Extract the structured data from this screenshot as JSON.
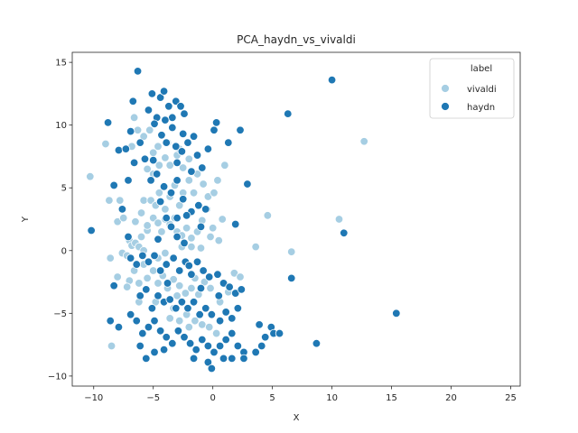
{
  "chart_data": {
    "type": "scatter",
    "title": "PCA_haydn_vs_vivaldi",
    "xlabel": "X",
    "ylabel": "Y",
    "xlim": [
      -11.8,
      25.8
    ],
    "ylim": [
      -10.8,
      15.8
    ],
    "xticks": [
      -10,
      -5,
      0,
      5,
      10,
      15,
      20,
      25
    ],
    "yticks": [
      -10,
      -5,
      0,
      5,
      10,
      15
    ],
    "grid": false,
    "legend": {
      "title": "label",
      "placement": "top-right",
      "entries": [
        "vivaldi",
        "haydn"
      ]
    },
    "series": [
      {
        "name": "vivaldi",
        "color": "#a6cee3",
        "points": [
          [
            -10.3,
            5.9
          ],
          [
            -9.0,
            8.5
          ],
          [
            -8.7,
            4.0
          ],
          [
            -8.5,
            -7.6
          ],
          [
            -7.8,
            4.0
          ],
          [
            -8.0,
            2.3
          ],
          [
            -7.5,
            2.6
          ],
          [
            -7.6,
            -0.2
          ],
          [
            -7.2,
            -0.4
          ],
          [
            -7.0,
            0.8
          ],
          [
            -6.8,
            0.4
          ],
          [
            -6.5,
            0.6
          ],
          [
            -6.2,
            0.3
          ],
          [
            -6.0,
            1.1
          ],
          [
            -5.8,
            0.0
          ],
          [
            -5.5,
            1.6
          ],
          [
            -6.5,
            2.3
          ],
          [
            -6.0,
            3.0
          ],
          [
            -5.5,
            2.0
          ],
          [
            -5.0,
            2.6
          ],
          [
            -4.6,
            2.2
          ],
          [
            -4.3,
            1.5
          ],
          [
            -4.0,
            2.5
          ],
          [
            -3.6,
            2.1
          ],
          [
            -3.2,
            2.6
          ],
          [
            -3.0,
            1.5
          ],
          [
            -2.6,
            1.2
          ],
          [
            -2.2,
            1.8
          ],
          [
            -1.8,
            1.0
          ],
          [
            -1.3,
            1.5
          ],
          [
            -0.9,
            2.4
          ],
          [
            -0.5,
            3.3
          ],
          [
            -0.2,
            1.1
          ],
          [
            0.5,
            0.8
          ],
          [
            0.8,
            2.5
          ],
          [
            -1.0,
            0.2
          ],
          [
            -1.8,
            0.3
          ],
          [
            -2.6,
            0.3
          ],
          [
            -5.8,
            4.0
          ],
          [
            -5.2,
            4.0
          ],
          [
            -4.8,
            3.6
          ],
          [
            -4.5,
            4.6
          ],
          [
            -4.0,
            3.3
          ],
          [
            -3.6,
            4.3
          ],
          [
            -3.2,
            5.2
          ],
          [
            -2.8,
            3.6
          ],
          [
            -2.5,
            4.6
          ],
          [
            -2.0,
            5.6
          ],
          [
            -1.6,
            4.6
          ],
          [
            -1.3,
            6.1
          ],
          [
            -0.8,
            5.3
          ],
          [
            -0.4,
            4.3
          ],
          [
            0.1,
            4.6
          ],
          [
            0.4,
            5.6
          ],
          [
            -5.5,
            6.5
          ],
          [
            -5.0,
            6.1
          ],
          [
            -4.5,
            6.8
          ],
          [
            -4.0,
            7.4
          ],
          [
            -3.6,
            6.8
          ],
          [
            -3.0,
            7.6
          ],
          [
            -2.5,
            6.6
          ],
          [
            -2.0,
            7.3
          ],
          [
            -4.6,
            8.3
          ],
          [
            -3.8,
            8.6
          ],
          [
            -2.8,
            8.1
          ],
          [
            -5.8,
            9.1
          ],
          [
            -5.3,
            9.6
          ],
          [
            -6.6,
            10.6
          ],
          [
            -6.3,
            9.6
          ],
          [
            -6.8,
            8.3
          ],
          [
            -5.0,
            7.8
          ],
          [
            1.0,
            6.8
          ],
          [
            -7.0,
            -2.4
          ],
          [
            -6.6,
            -1.6
          ],
          [
            -6.2,
            -2.6
          ],
          [
            -5.8,
            -1.1
          ],
          [
            -5.5,
            -2.2
          ],
          [
            -5.0,
            -1.6
          ],
          [
            -4.6,
            -2.6
          ],
          [
            -4.2,
            -2.0
          ],
          [
            -3.8,
            -3.0
          ],
          [
            -3.3,
            -2.3
          ],
          [
            -2.8,
            -2.8
          ],
          [
            -2.3,
            -3.4
          ],
          [
            -1.8,
            -3.0
          ],
          [
            -1.2,
            -3.5
          ],
          [
            -0.7,
            -2.5
          ],
          [
            -0.2,
            -3.0
          ],
          [
            1.8,
            -1.8
          ],
          [
            2.3,
            -2.1
          ],
          [
            -3.6,
            -5.4
          ],
          [
            -3.3,
            -4.6
          ],
          [
            -2.8,
            -5.6
          ],
          [
            -2.2,
            -5.1
          ],
          [
            -1.5,
            -5.6
          ],
          [
            -0.9,
            -5.9
          ],
          [
            -0.3,
            -6.1
          ],
          [
            0.3,
            -6.6
          ],
          [
            -2.0,
            -6.1
          ],
          [
            -4.8,
            -4.1
          ],
          [
            -4.6,
            -0.6
          ],
          [
            -4.0,
            -0.2
          ],
          [
            -6.2,
            -4.1
          ],
          [
            -7.2,
            -2.9
          ],
          [
            -8.6,
            -0.6
          ],
          [
            -8.0,
            -2.1
          ],
          [
            0.0,
            1.8
          ],
          [
            4.6,
            2.8
          ],
          [
            3.6,
            0.3
          ],
          [
            6.6,
            -0.1
          ],
          [
            10.6,
            2.5
          ],
          [
            12.7,
            8.7
          ],
          [
            -3.0,
            -3.6
          ],
          [
            -1.5,
            -2.2
          ],
          [
            0.6,
            -4.1
          ],
          [
            1.3,
            -3.3
          ]
        ]
      },
      {
        "name": "haydn",
        "color": "#1f78b4",
        "points": [
          [
            -10.2,
            1.6
          ],
          [
            -8.8,
            10.2
          ],
          [
            -8.3,
            5.2
          ],
          [
            -7.9,
            8.0
          ],
          [
            -8.3,
            -2.8
          ],
          [
            -8.6,
            -5.6
          ],
          [
            -7.9,
            -6.1
          ],
          [
            -7.3,
            8.1
          ],
          [
            -7.1,
            5.6
          ],
          [
            -6.9,
            9.5
          ],
          [
            -6.7,
            11.9
          ],
          [
            -6.3,
            14.3
          ],
          [
            -6.1,
            8.6
          ],
          [
            -5.7,
            7.3
          ],
          [
            -5.4,
            11.2
          ],
          [
            -5.1,
            12.5
          ],
          [
            -4.7,
            10.6
          ],
          [
            -4.4,
            12.2
          ],
          [
            -4.1,
            12.7
          ],
          [
            -3.7,
            11.5
          ],
          [
            -3.4,
            10.6
          ],
          [
            -3.1,
            11.9
          ],
          [
            -2.7,
            11.5
          ],
          [
            -2.4,
            10.9
          ],
          [
            -4.3,
            9.2
          ],
          [
            -3.9,
            8.6
          ],
          [
            -3.1,
            8.3
          ],
          [
            -2.6,
            7.9
          ],
          [
            -2.1,
            8.6
          ],
          [
            -1.6,
            9.1
          ],
          [
            -1.3,
            7.6
          ],
          [
            -0.9,
            6.6
          ],
          [
            -0.4,
            8.1
          ],
          [
            0.1,
            9.6
          ],
          [
            0.3,
            10.2
          ],
          [
            1.3,
            8.6
          ],
          [
            2.3,
            9.6
          ],
          [
            -5.2,
            5.6
          ],
          [
            -4.7,
            6.1
          ],
          [
            -4.1,
            5.1
          ],
          [
            -3.5,
            4.6
          ],
          [
            -3.0,
            5.6
          ],
          [
            -2.5,
            4.1
          ],
          [
            -1.8,
            3.1
          ],
          [
            -1.2,
            3.6
          ],
          [
            -0.6,
            3.3
          ],
          [
            -3.9,
            2.6
          ],
          [
            -3.5,
            1.9
          ],
          [
            -3.0,
            1.1
          ],
          [
            -2.4,
            0.6
          ],
          [
            -6.9,
            -0.6
          ],
          [
            -6.4,
            -1.1
          ],
          [
            -5.9,
            -0.4
          ],
          [
            -5.4,
            -0.9
          ],
          [
            -4.9,
            -0.4
          ],
          [
            -4.4,
            -1.6
          ],
          [
            -3.9,
            -1.1
          ],
          [
            -3.3,
            -0.6
          ],
          [
            -2.8,
            -1.6
          ],
          [
            -2.3,
            -0.9
          ],
          [
            -1.8,
            -1.9
          ],
          [
            -1.3,
            -0.9
          ],
          [
            -0.8,
            -1.6
          ],
          [
            -0.3,
            -2.1
          ],
          [
            0.4,
            -1.9
          ],
          [
            0.9,
            -2.6
          ],
          [
            1.4,
            -2.9
          ],
          [
            1.9,
            -3.4
          ],
          [
            2.4,
            -3.1
          ],
          [
            -6.1,
            -3.6
          ],
          [
            -5.6,
            -3.1
          ],
          [
            -5.1,
            -4.6
          ],
          [
            -4.6,
            -3.6
          ],
          [
            -4.1,
            -4.1
          ],
          [
            -3.6,
            -3.9
          ],
          [
            -3.1,
            -4.6
          ],
          [
            -2.6,
            -4.1
          ],
          [
            -2.1,
            -4.6
          ],
          [
            -1.6,
            -4.1
          ],
          [
            -1.1,
            -5.1
          ],
          [
            -0.6,
            -4.6
          ],
          [
            -0.1,
            -5.1
          ],
          [
            0.6,
            -5.6
          ],
          [
            1.1,
            -4.9
          ],
          [
            1.6,
            -5.4
          ],
          [
            2.1,
            -4.6
          ],
          [
            -6.9,
            -5.1
          ],
          [
            -6.4,
            -5.6
          ],
          [
            -5.9,
            -6.6
          ],
          [
            -5.4,
            -6.1
          ],
          [
            -4.9,
            -5.6
          ],
          [
            -4.4,
            -6.4
          ],
          [
            -3.9,
            -6.9
          ],
          [
            -3.4,
            -7.4
          ],
          [
            -2.9,
            -6.4
          ],
          [
            -2.4,
            -6.9
          ],
          [
            -1.9,
            -7.4
          ],
          [
            -1.4,
            -7.9
          ],
          [
            -0.9,
            -7.1
          ],
          [
            -0.4,
            -7.6
          ],
          [
            0.1,
            -8.1
          ],
          [
            0.6,
            -7.6
          ],
          [
            1.1,
            -7.1
          ],
          [
            1.6,
            -6.6
          ],
          [
            2.1,
            -7.6
          ],
          [
            2.6,
            -8.1
          ],
          [
            -5.6,
            -8.6
          ],
          [
            -4.9,
            -8.1
          ],
          [
            -4.1,
            -7.9
          ],
          [
            -1.6,
            -8.6
          ],
          [
            -0.4,
            -8.9
          ],
          [
            -0.1,
            -9.4
          ],
          [
            0.9,
            -8.6
          ],
          [
            1.6,
            -8.6
          ],
          [
            2.6,
            -8.6
          ],
          [
            -6.1,
            -7.6
          ],
          [
            3.9,
            -5.9
          ],
          [
            4.4,
            -6.9
          ],
          [
            4.9,
            -6.1
          ],
          [
            5.1,
            -6.6
          ],
          [
            5.6,
            -6.6
          ],
          [
            4.1,
            -7.6
          ],
          [
            3.6,
            -8.1
          ],
          [
            8.7,
            -7.4
          ],
          [
            15.4,
            -5.0
          ],
          [
            6.6,
            -2.2
          ],
          [
            11.0,
            1.4
          ],
          [
            10.0,
            13.6
          ],
          [
            6.3,
            10.9
          ],
          [
            2.9,
            5.3
          ],
          [
            -7.6,
            3.3
          ],
          [
            -7.1,
            1.1
          ],
          [
            -4.6,
            0.9
          ],
          [
            -3.0,
            2.6
          ],
          [
            1.9,
            2.1
          ],
          [
            -2.0,
            -1.2
          ],
          [
            0.5,
            -3.6
          ],
          [
            -1.0,
            -3.0
          ],
          [
            -3.8,
            -2.6
          ],
          [
            -4.9,
            10.1
          ],
          [
            -4.0,
            10.4
          ],
          [
            -3.4,
            9.8
          ],
          [
            -2.5,
            9.3
          ],
          [
            -5.0,
            7.2
          ],
          [
            -6.6,
            7.0
          ],
          [
            -3.0,
            7.0
          ],
          [
            -1.8,
            6.3
          ],
          [
            -4.4,
            3.9
          ],
          [
            -2.2,
            2.8
          ],
          [
            -1.0,
            1.9
          ]
        ]
      }
    ]
  }
}
